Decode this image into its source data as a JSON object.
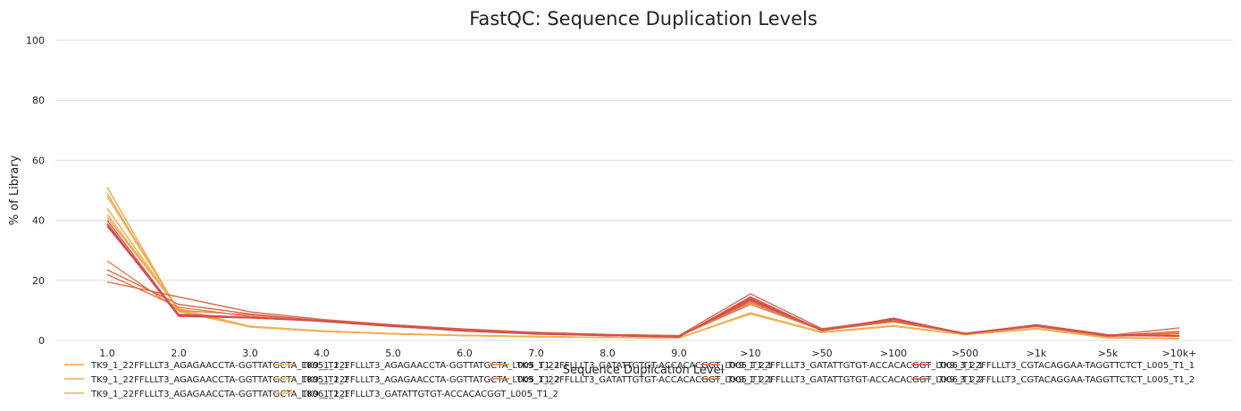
{
  "chart_data": {
    "type": "line",
    "title": "FastQC: Sequence Duplication Levels",
    "xlabel": "Sequence Duplication Level",
    "ylabel": "% of Library",
    "ylim": [
      0,
      100
    ],
    "yticks": [
      "0",
      "20",
      "40",
      "60",
      "80",
      "100"
    ],
    "grid": true,
    "legend_position": "bottom",
    "categories": [
      "1.0",
      "2.0",
      "3.0",
      "4.0",
      "5.0",
      "6.0",
      "7.0",
      "8.0",
      "9.0",
      ">10",
      ">50",
      ">100",
      ">500",
      ">1k",
      ">5k",
      ">10k+"
    ],
    "series": [
      {
        "name": "TK9_1_22FFLLLT3_AGAGAACCTA-GGTTATGCTA_L005_T1_1",
        "color": "#f4a24a",
        "values": [
          48.0,
          10.0,
          4.6,
          3.1,
          2.2,
          1.6,
          1.3,
          1.0,
          0.8,
          9.0,
          2.7,
          4.8,
          1.9,
          3.9,
          0.9,
          0.6
        ]
      },
      {
        "name": "TK9_1_22FFLLLT3_AGAGAACCTA-GGTTATGCTA_L005_T1_2",
        "color": "#f4a24a",
        "values": [
          41.0,
          10.5,
          4.7,
          3.2,
          2.3,
          1.7,
          1.3,
          1.0,
          0.8,
          9.2,
          2.8,
          4.9,
          2.0,
          4.0,
          1.0,
          0.7
        ]
      },
      {
        "name": "TK9_1_22FFLLLT3_AGAGAACCTA-GGTTATGCTA_L006_T1_1",
        "color": "#f2a84a",
        "values": [
          51.0,
          9.6,
          4.5,
          3.0,
          2.1,
          1.6,
          1.2,
          1.0,
          0.8,
          8.8,
          2.6,
          4.7,
          1.9,
          3.8,
          0.9,
          0.6
        ]
      },
      {
        "name": "TK9_1_22FFLLLT3_AGAGAACCTA-GGTTATGCTA_L006_T1_2",
        "color": "#f2ab4a",
        "values": [
          44.0,
          10.2,
          4.6,
          3.1,
          2.2,
          1.6,
          1.3,
          1.0,
          0.8,
          9.0,
          2.7,
          4.8,
          1.9,
          3.9,
          0.9,
          0.6
        ]
      },
      {
        "name": "TK9_1_22FFLLLT3_AGAGAACCTA-GGTTATGCTA_L005_T1_1",
        "color": "#eab24a",
        "values": [
          49.0,
          9.8,
          4.5,
          3.0,
          2.2,
          1.6,
          1.2,
          1.0,
          0.8,
          8.9,
          2.7,
          4.8,
          1.9,
          3.9,
          0.9,
          0.6
        ]
      },
      {
        "name": "TK9_1_22FFLLLT3_AGAGAACCTA-GGTTATGCTA_L005_T1_2",
        "color": "#eeb050",
        "values": [
          42.0,
          10.4,
          4.7,
          3.1,
          2.3,
          1.7,
          1.3,
          1.0,
          0.8,
          9.1,
          2.8,
          4.9,
          2.0,
          4.0,
          1.0,
          0.7
        ]
      },
      {
        "name": "TK9_1_22FFLLLT3_GATATTGTGT-ACCACACGGT_L005_T1_1",
        "color": "#e8833f",
        "values": [
          26.5,
          10.0,
          8.5,
          6.5,
          4.8,
          3.5,
          2.5,
          1.9,
          1.5,
          12.5,
          3.6,
          6.5,
          2.3,
          4.8,
          1.4,
          2.5
        ]
      },
      {
        "name": "TK9_1_22FFLLLT3_GATATTGTGT-ACCACACGGT_L005_T1_2",
        "color": "#e07a40",
        "values": [
          22.0,
          11.0,
          8.0,
          6.3,
          4.6,
          3.4,
          2.4,
          1.8,
          1.4,
          12.0,
          3.4,
          6.2,
          2.2,
          4.6,
          1.3,
          2.2
        ]
      },
      {
        "name": "TK9_1_22FFLLLT3_GATATTGTGT-ACCACACGGT_L006_T1_1",
        "color": "#dc6a45",
        "values": [
          19.5,
          14.5,
          9.5,
          7.0,
          5.2,
          3.8,
          2.7,
          2.0,
          1.6,
          15.5,
          3.9,
          7.0,
          2.4,
          5.0,
          1.6,
          4.2
        ]
      },
      {
        "name": "TK9_1_22FFLLLT3_GATATTGTGT-ACCACACGGT_L006_T1_2",
        "color": "#d95f4c",
        "values": [
          23.5,
          12.0,
          8.8,
          6.6,
          4.9,
          3.6,
          2.5,
          1.9,
          1.5,
          13.0,
          3.7,
          6.6,
          2.3,
          4.8,
          1.5,
          3.0
        ]
      },
      {
        "name": "TK9_3_22FFLLLT3_CGTACAGGAA-TAGGTTCTCT_L005_T1_1",
        "color": "#d9534f",
        "values": [
          38.5,
          8.0,
          7.5,
          6.5,
          4.8,
          3.2,
          2.2,
          1.6,
          1.2,
          14.5,
          3.3,
          7.4,
          2.2,
          5.1,
          1.8,
          1.5
        ]
      },
      {
        "name": "TK9_3_22FFLLLT3_CGTACAGGAA-TAGGTTCTCT_L005_T1_2",
        "color": "#d75252",
        "values": [
          40.0,
          8.5,
          7.6,
          6.4,
          4.7,
          3.1,
          2.1,
          1.6,
          1.2,
          13.8,
          3.2,
          7.1,
          2.1,
          5.0,
          1.7,
          1.4
        ]
      },
      {
        "name": "TK9_3_22FFLLLT3_CGTACAGGAA-TAGGTTCTCT_L006_T1_1",
        "color": "#d55050",
        "values": [
          39.0,
          8.2,
          7.5,
          6.5,
          4.8,
          3.2,
          2.2,
          1.6,
          1.2,
          14.2,
          3.3,
          7.3,
          2.2,
          5.1,
          1.8,
          1.5
        ]
      },
      {
        "name": "TK9_3_22FFLLLT3_CGTACAGGAA-TAGGTTCTCT_L006_T1_2",
        "color": "#d34e4e",
        "values": [
          38.0,
          8.7,
          7.7,
          6.6,
          4.9,
          3.3,
          2.3,
          1.7,
          1.3,
          13.5,
          3.4,
          7.2,
          2.3,
          5.2,
          1.9,
          1.6
        ]
      }
    ],
    "legend": [
      {
        "label": "TK9_1_22FFLLLT3_AGAGAACCTA-GGTTATGCTA_L005_T1_1",
        "color": "#f4a24a"
      },
      {
        "label": "TK9_1_22FFLLLT3_AGAGAACCTA-GGTTATGCTA_L005_T1_2",
        "color": "#f2a84a"
      },
      {
        "label": "TK9_1_22FFLLLT3_AGAGAACCTA-GGTTATGCTA_L006_T1_1",
        "color": "#eeb050"
      },
      {
        "label": "TK9_1_22FFLLLT3_AGAGAACCTA-GGTTATGCTA_L005_T1_1",
        "color": "#f2ab4a"
      },
      {
        "label": "TK9_1_22FFLLLT3_AGAGAACCTA-GGTTATGCTA_L005_T1_2",
        "color": "#eab24a"
      },
      {
        "label": "TK9_1_22FFLLLT3_GATATTGTGT-ACCACACGGT_L005_T1_2",
        "color": "#eeb050"
      },
      {
        "label": "TK9_1_22FFLLLT3_GATATTGTGT-ACCACACGGT_L005_T1_1",
        "color": "#e8833f"
      },
      {
        "label": "TK9_1_22FFLLLT3_GATATTGTGT-ACCACACGGT_L005_T1_1",
        "color": "#e07a40"
      },
      {
        "label": "",
        "color": ""
      },
      {
        "label": "TK9_1_22FFLLLT3_GATATTGTGT-ACCACACGGT_L006_T1_1",
        "color": "#dc6a45"
      },
      {
        "label": "TK9_1_22FFLLLT3_GATATTGTGT-ACCACACGGT_L006_T1_2",
        "color": "#d95f4c"
      },
      {
        "label": "",
        "color": ""
      },
      {
        "label": "TK9_3_22FFLLLT3_CGTACAGGAA-TAGGTTCTCT_L005_T1_1",
        "color": "#d9534f"
      },
      {
        "label": "TK9_3_22FFLLLT3_CGTACAGGAA-TAGGTTCTCT_L005_T1_2",
        "color": "#d75252"
      },
      {
        "label": "",
        "color": ""
      },
      {
        "label": "TK9_3_22FFLLLT3_CGTACAGGAA-TAGGTTCTCT_L006_T1_1",
        "color": "#d55050"
      },
      {
        "label": "TK9_3_22FFLLLT3_CGTACAGGAA-TAGGTTCTCT_L006_T1_2",
        "color": "#d34e4e"
      },
      {
        "label": "",
        "color": ""
      }
    ]
  }
}
